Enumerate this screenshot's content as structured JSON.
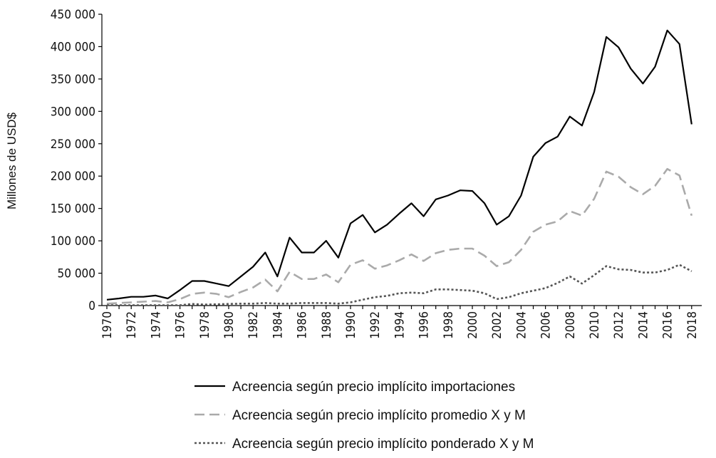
{
  "chart_data": {
    "type": "line",
    "ylabel": "Millones de USD$",
    "ylim": [
      0,
      450000
    ],
    "yticks": [
      0,
      50000,
      100000,
      150000,
      200000,
      250000,
      300000,
      350000,
      400000,
      450000
    ],
    "ytick_labels": [
      "0",
      "50 000",
      "100 000",
      "150 000",
      "200 000",
      "250 000",
      "300 000",
      "350 000",
      "400 000",
      "450 000"
    ],
    "x": [
      1970,
      1971,
      1972,
      1973,
      1974,
      1975,
      1976,
      1977,
      1978,
      1979,
      1980,
      1981,
      1982,
      1983,
      1984,
      1985,
      1986,
      1987,
      1988,
      1989,
      1990,
      1991,
      1992,
      1993,
      1994,
      1995,
      1996,
      1997,
      1998,
      1999,
      2000,
      2001,
      2002,
      2003,
      2004,
      2005,
      2006,
      2007,
      2008,
      2009,
      2010,
      2011,
      2012,
      2013,
      2014,
      2015,
      2016,
      2017,
      2018
    ],
    "xtick_labels": [
      "1970",
      "1972",
      "1974",
      "1976",
      "1978",
      "1980",
      "1982",
      "1984",
      "1986",
      "1988",
      "1990",
      "1992",
      "1994",
      "1996",
      "1998",
      "2000",
      "2002",
      "2004",
      "2006",
      "2008",
      "2010",
      "2012",
      "2014",
      "2016",
      "2018"
    ],
    "grid": false,
    "legend_position": "bottom",
    "series": [
      {
        "name": "Acreencia según precio implícito importaciones",
        "color": "#000000",
        "style": "solid",
        "values": [
          9000,
          11000,
          13500,
          13500,
          15500,
          11000,
          24000,
          38000,
          38000,
          34000,
          30000,
          45000,
          60000,
          82000,
          45000,
          105000,
          82000,
          82000,
          100000,
          74000,
          127000,
          140000,
          113000,
          125000,
          142000,
          158000,
          138000,
          164000,
          170000,
          178000,
          177000,
          158000,
          125000,
          138000,
          170000,
          230000,
          251000,
          261000,
          292000,
          278000,
          330000,
          415000,
          399000,
          366000,
          343000,
          369000,
          425000,
          404000,
          280000
        ]
      },
      {
        "name": "Acreencia según precio implícito promedio X y M",
        "color": "#aaaaaa",
        "style": "dashed",
        "values": [
          3000,
          4000,
          5000,
          6000,
          7000,
          5000,
          10000,
          18000,
          20000,
          18000,
          13000,
          21000,
          28000,
          40000,
          22000,
          52000,
          41000,
          41000,
          48000,
          36000,
          63000,
          70000,
          57000,
          62000,
          70000,
          79000,
          69000,
          81000,
          86000,
          88000,
          88000,
          77000,
          61000,
          67000,
          86000,
          114000,
          125000,
          130000,
          146000,
          139000,
          165000,
          207000,
          199000,
          183000,
          172000,
          185000,
          211000,
          201000,
          139000
        ]
      },
      {
        "name": "Acreencia según precio implícito ponderado X y M",
        "color": "#555555",
        "style": "dotted",
        "values": [
          500,
          500,
          500,
          500,
          500,
          500,
          500,
          2500,
          1500,
          2000,
          2500,
          3000,
          3000,
          4000,
          3000,
          3000,
          4000,
          4000,
          4000,
          3000,
          5000,
          9000,
          13000,
          15000,
          19000,
          20000,
          19000,
          25000,
          25000,
          24000,
          23000,
          19000,
          10000,
          13000,
          19000,
          23000,
          27000,
          35000,
          45000,
          34000,
          47000,
          61000,
          56000,
          55000,
          51000,
          51000,
          55000,
          63000,
          53000
        ]
      }
    ]
  }
}
